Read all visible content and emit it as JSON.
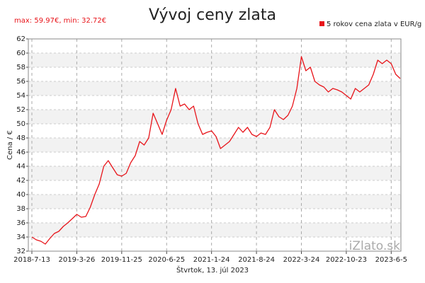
{
  "chart_data": {
    "type": "line",
    "title": "Vývoj ceny zlata",
    "annotations": [
      "max: 59.97€, min: 32.72€",
      "iZlato.sk"
    ],
    "x_label": "Štvrtok, 13. júl 2023",
    "y_label": "Cena / €",
    "categories": [
      "2018-7-13",
      null,
      null,
      null,
      null,
      null,
      null,
      null,
      null,
      null,
      "2019-3-26",
      null,
      null,
      null,
      null,
      null,
      null,
      null,
      null,
      null,
      "2019-11-25",
      null,
      null,
      null,
      null,
      null,
      null,
      null,
      null,
      null,
      "2020-6-25",
      null,
      null,
      null,
      null,
      null,
      null,
      null,
      null,
      null,
      "2021-1-24",
      null,
      null,
      null,
      null,
      null,
      null,
      null,
      null,
      null,
      "2021-8-24",
      null,
      null,
      null,
      null,
      null,
      null,
      null,
      null,
      null,
      "2022-3-24",
      null,
      null,
      null,
      null,
      null,
      null,
      null,
      null,
      null,
      "2022-10-23",
      null,
      null,
      null,
      null,
      null,
      null,
      null,
      null,
      null,
      "2023-6-5",
      null,
      null
    ],
    "series": [
      {
        "name": "5 rokov cena zlata v EUR/g",
        "color": "#e8141a",
        "values": [
          34.0,
          33.6,
          33.4,
          33.0,
          33.8,
          34.5,
          34.8,
          35.5,
          36.0,
          36.6,
          37.2,
          36.8,
          36.9,
          38.2,
          40.0,
          41.5,
          44.0,
          44.8,
          43.8,
          42.8,
          42.6,
          43.0,
          44.5,
          45.5,
          47.5,
          47.0,
          48.0,
          51.5,
          50.0,
          48.5,
          50.5,
          52.0,
          55.0,
          52.5,
          52.8,
          52.0,
          52.5,
          50.0,
          48.5,
          48.8,
          49.0,
          48.2,
          46.5,
          47.0,
          47.5,
          48.5,
          49.5,
          48.8,
          49.5,
          48.5,
          48.2,
          48.7,
          48.5,
          49.5,
          52.0,
          51.0,
          50.6,
          51.2,
          52.5,
          55.0,
          59.5,
          57.5,
          58.0,
          56.0,
          55.5,
          55.2,
          54.5,
          55.0,
          54.8,
          54.5,
          54.0,
          53.5,
          55.0,
          54.5,
          55.0,
          55.5,
          57.0,
          59.0,
          58.5,
          59.0,
          58.5,
          57.0,
          56.4
        ]
      }
    ],
    "ylim": [
      32,
      62
    ],
    "yticks": [
      32,
      34,
      36,
      38,
      40,
      42,
      44,
      46,
      48,
      50,
      52,
      54,
      56,
      58,
      60,
      62
    ],
    "grid": true,
    "legend": "top-right"
  }
}
